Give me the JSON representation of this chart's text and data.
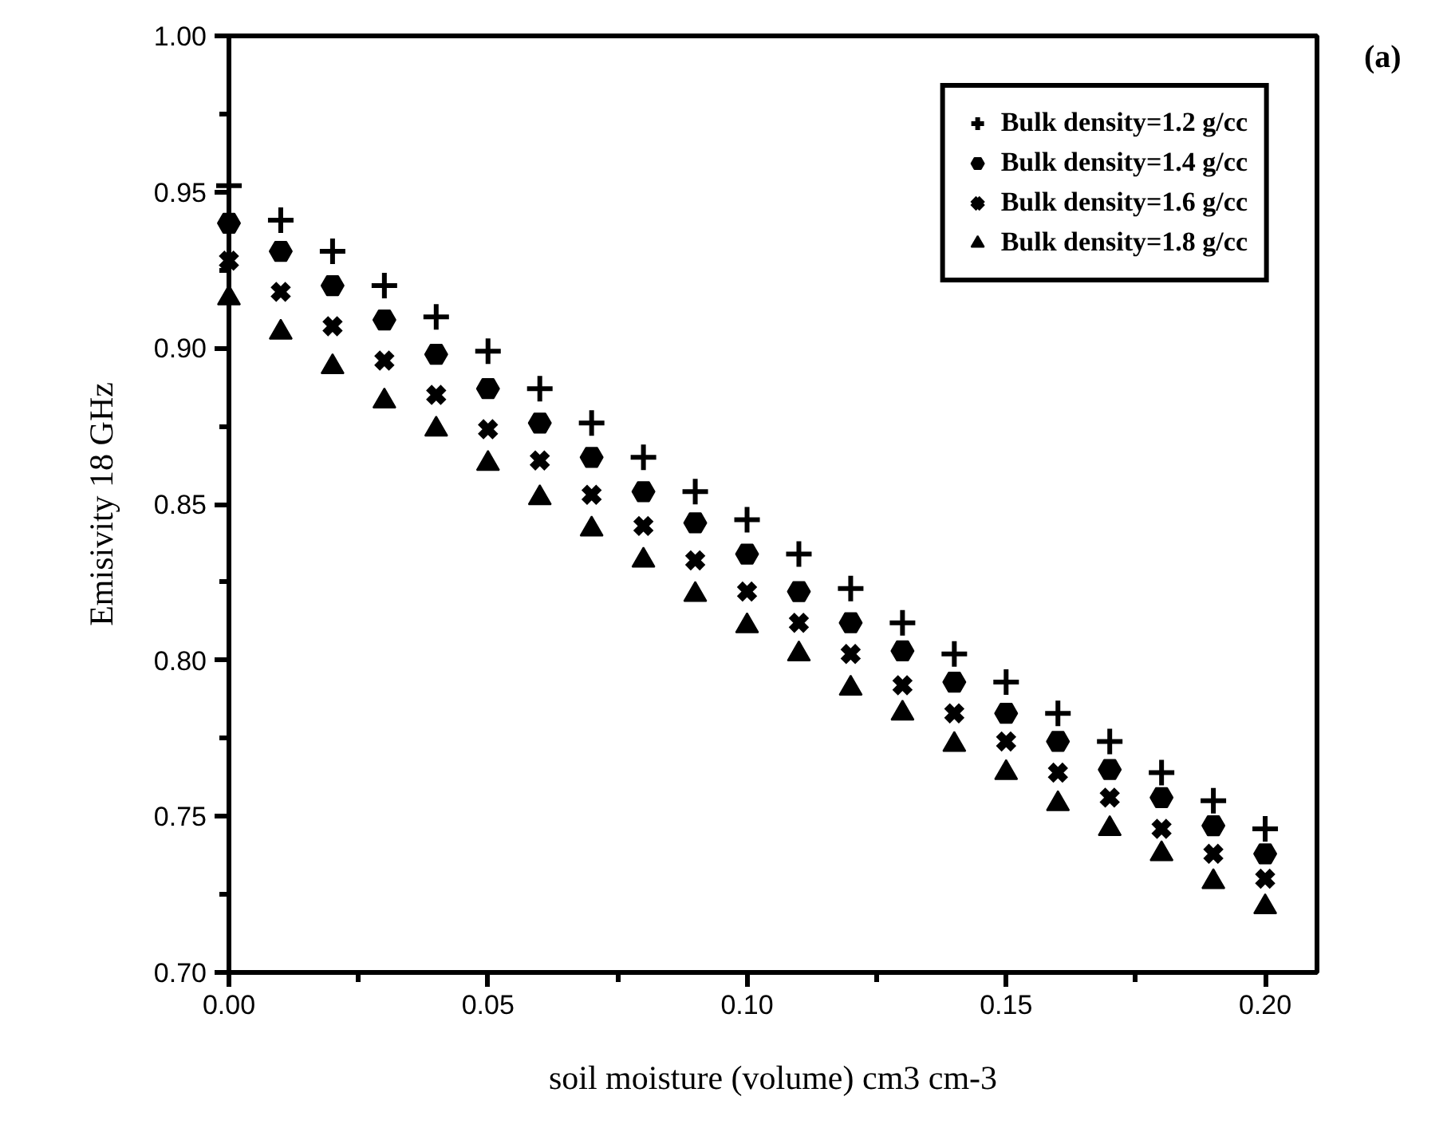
{
  "chart_data": {
    "type": "scatter",
    "xlabel": "soil moisture (volume) cm3 cm-3",
    "ylabel": "Emisivity 18 GHz",
    "annotations": [
      "(a)"
    ],
    "x": [
      0.0,
      0.01,
      0.02,
      0.03,
      0.04,
      0.05,
      0.06,
      0.07,
      0.08,
      0.09,
      0.1,
      0.11,
      0.12,
      0.13,
      0.14,
      0.15,
      0.16,
      0.17,
      0.18,
      0.19,
      0.2
    ],
    "series": [
      {
        "name": "Bulk density=1.2 g/cc",
        "color": "#000000",
        "marker": "cross",
        "values": [
          0.952,
          0.941,
          0.931,
          0.92,
          0.91,
          0.899,
          0.887,
          0.876,
          0.865,
          0.854,
          0.845,
          0.834,
          0.823,
          0.812,
          0.802,
          0.793,
          0.783,
          0.774,
          0.764,
          0.755,
          0.746
        ]
      },
      {
        "name": "Bulk density=1.4 g/cc",
        "color": "#000000",
        "marker": "circle",
        "values": [
          0.94,
          0.931,
          0.92,
          0.909,
          0.898,
          0.887,
          0.876,
          0.865,
          0.854,
          0.844,
          0.834,
          0.822,
          0.812,
          0.803,
          0.793,
          0.783,
          0.774,
          0.765,
          0.756,
          0.747,
          0.738
        ]
      },
      {
        "name": "Bulk density=1.6 g/cc",
        "color": "#000000",
        "marker": "x",
        "values": [
          0.928,
          0.918,
          0.907,
          0.896,
          0.885,
          0.874,
          0.864,
          0.853,
          0.843,
          0.832,
          0.822,
          0.812,
          0.802,
          0.792,
          0.783,
          0.774,
          0.764,
          0.756,
          0.746,
          0.738,
          0.73
        ]
      },
      {
        "name": "Bulk density=1.8 g/cc",
        "color": "#000000",
        "marker": "triangle",
        "values": [
          0.916,
          0.905,
          0.894,
          0.883,
          0.874,
          0.863,
          0.852,
          0.842,
          0.832,
          0.821,
          0.811,
          0.802,
          0.791,
          0.783,
          0.773,
          0.764,
          0.754,
          0.746,
          0.738,
          0.729,
          0.721
        ]
      }
    ],
    "xlim": [
      0.0,
      0.21
    ],
    "ylim": [
      0.7,
      1.0
    ],
    "xticks": [
      {
        "value": 0.0,
        "label": "0.00"
      },
      {
        "value": 0.025,
        "label": null
      },
      {
        "value": 0.05,
        "label": "0.05"
      },
      {
        "value": 0.075,
        "label": null
      },
      {
        "value": 0.1,
        "label": "0.10"
      },
      {
        "value": 0.125,
        "label": null
      },
      {
        "value": 0.15,
        "label": "0.15"
      },
      {
        "value": 0.175,
        "label": null
      },
      {
        "value": 0.2,
        "label": "0.20"
      }
    ],
    "yticks": [
      {
        "value": 0.7,
        "label": "0.70"
      },
      {
        "value": 0.725,
        "label": null
      },
      {
        "value": 0.75,
        "label": "0.75"
      },
      {
        "value": 0.775,
        "label": null
      },
      {
        "value": 0.8,
        "label": "0.80"
      },
      {
        "value": 0.825,
        "label": null
      },
      {
        "value": 0.85,
        "label": "0.85"
      },
      {
        "value": 0.875,
        "label": null
      },
      {
        "value": 0.9,
        "label": "0.90"
      },
      {
        "value": 0.925,
        "label": null
      },
      {
        "value": 0.95,
        "label": "0.95"
      },
      {
        "value": 0.975,
        "label": null
      },
      {
        "value": 1.0,
        "label": "1.00"
      }
    ],
    "grid": false,
    "legend": "top right"
  }
}
